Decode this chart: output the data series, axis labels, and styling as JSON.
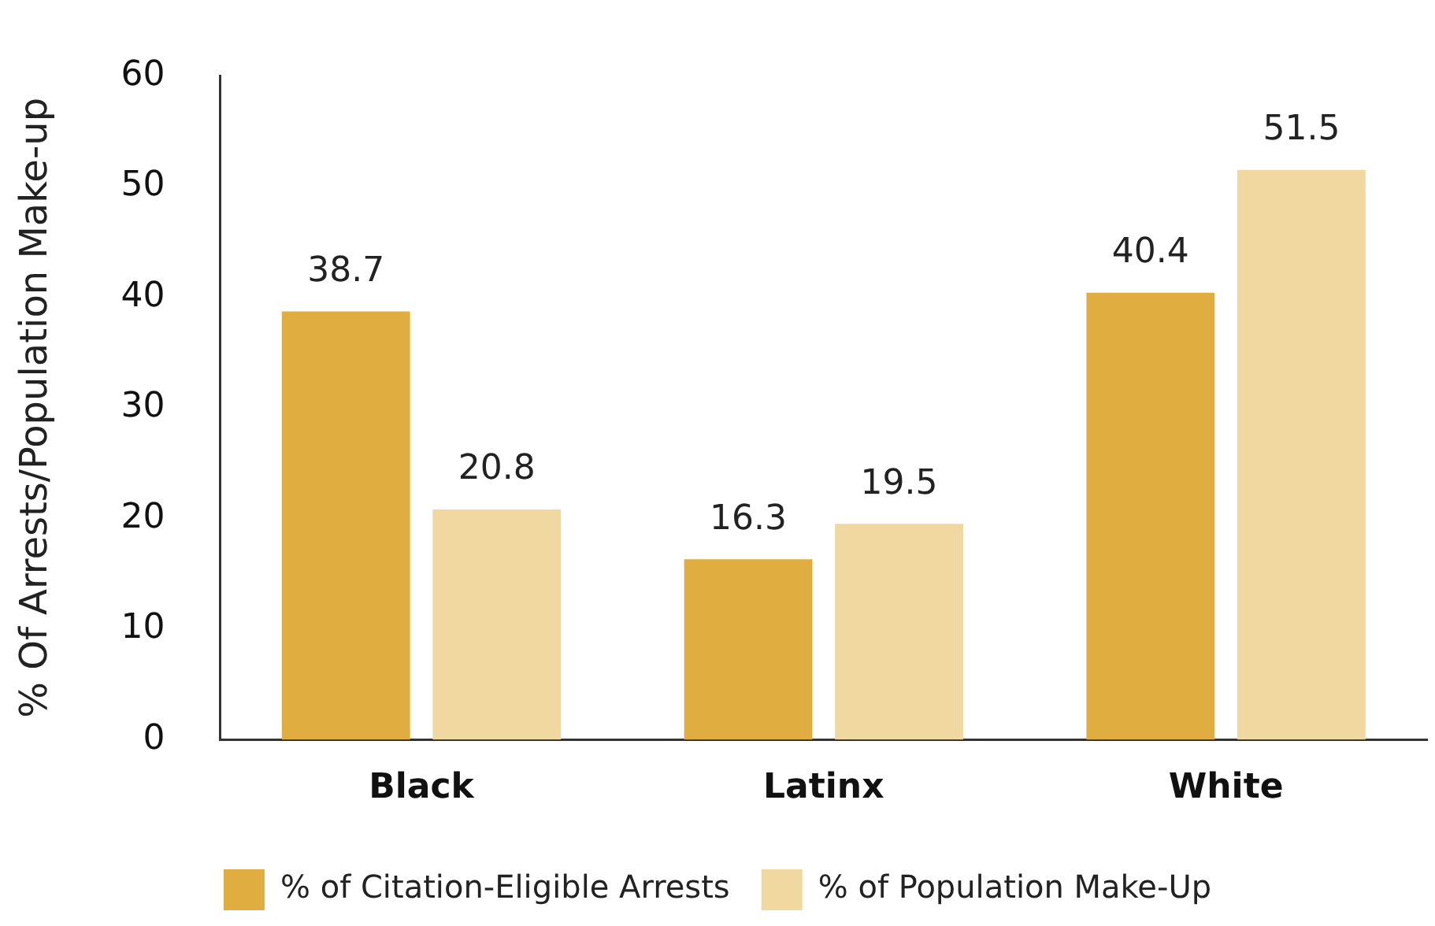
{
  "chart_data": {
    "type": "bar",
    "ylabel": "% Of Arrests/Population Make-up",
    "categories": [
      "Black",
      "Latinx",
      "White"
    ],
    "series": [
      {
        "name": "% of Citation-Eligible Arrests",
        "color": "#e0ae40",
        "values": [
          38.7,
          16.3,
          40.4
        ]
      },
      {
        "name": "% of Population Make-Up",
        "color": "#f0d8a0",
        "values": [
          20.8,
          19.5,
          51.5
        ]
      }
    ],
    "ylim": [
      0,
      60
    ],
    "yticks": [
      0,
      10,
      20,
      30,
      40,
      50,
      60
    ],
    "grid": false,
    "legend": "bottom",
    "data_labels": true
  }
}
